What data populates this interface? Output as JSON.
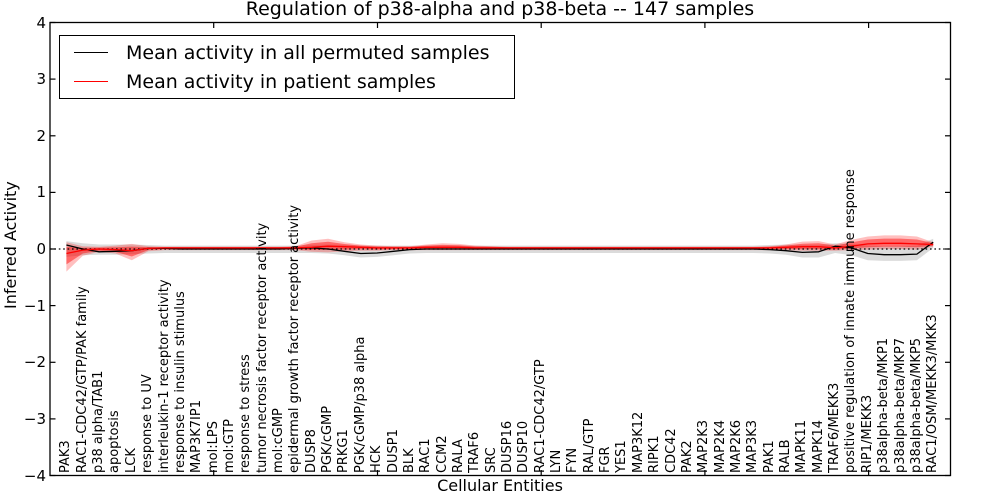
{
  "chart_data": {
    "type": "line",
    "title": "Regulation of p38-alpha and p38-beta -- 147 samples",
    "xlabel": "Cellular Entities",
    "ylabel": "Inferred Activity",
    "ylim": [
      -4,
      4
    ],
    "ytick_values": [
      4,
      3,
      2,
      1,
      0,
      -1,
      -2,
      -3,
      -4
    ],
    "ytick_labels": [
      "4",
      "3",
      "2",
      "1",
      "0",
      "−1",
      "−2",
      "−3",
      "−4"
    ],
    "grid": false,
    "legend_position": "upper left",
    "zero_line": {
      "y": 0,
      "style": "dotted",
      "color": "#000000"
    },
    "categories": [
      "PAK3",
      "RAC1-CDC42/GTP/PAK family",
      "p38 alpha/TAB1",
      "apoptosis",
      "LCK",
      "response to UV",
      "interleukin-1 receptor activity",
      "response to insulin stimulus",
      "MAP3K7IP1",
      "mol:LPS",
      "mol:GTP",
      "response to stress",
      "tumor necrosis factor receptor activity",
      "mol:cGMP",
      "epidermal growth factor receptor activity",
      "DUSP8",
      "PGK/cGMP",
      "PRKG1",
      "PGK/cGMP/p38 alpha",
      "HCK",
      "DUSP1",
      "BLK",
      "RAC1",
      "CCM2",
      "RALA",
      "TRAF6",
      "SRC",
      "DUSP16",
      "DUSP10",
      "RAC1-CDC42/GTP",
      "LYN",
      "FYN",
      "RAL/GTP",
      "FGR",
      "YES1",
      "MAP3K12",
      "RIPK1",
      "CDC42",
      "PAK2",
      "MAP2K3",
      "MAP2K4",
      "MAP2K6",
      "MAP3K3",
      "PAK1",
      "RALB",
      "MAPK11",
      "MAPK14",
      "TRAF6/MEKK3",
      "positive regulation of innate immune response",
      "RIP1/MEKK3",
      "p38alpha-beta/MKP1",
      "p38alpha-beta/MKP7",
      "p38alpha-beta/MKP5",
      "RAC1/OSM/MEKK3/MKK3"
    ],
    "series": [
      {
        "name": "Mean activity in all permuted samples",
        "color": "#000000",
        "values": [
          0.07,
          0.0,
          -0.05,
          -0.04,
          -0.03,
          0.01,
          0.01,
          0.0,
          0.0,
          0.0,
          0.0,
          0.0,
          0.0,
          0.0,
          0.01,
          0.02,
          0.0,
          -0.04,
          -0.08,
          -0.07,
          -0.04,
          -0.01,
          0.0,
          0.0,
          0.0,
          0.0,
          0.0,
          0.0,
          0.0,
          0.0,
          0.0,
          0.0,
          0.0,
          0.0,
          0.0,
          0.0,
          0.0,
          0.0,
          0.0,
          0.0,
          0.0,
          0.0,
          0.0,
          -0.01,
          -0.03,
          -0.06,
          -0.05,
          0.05,
          0.02,
          -0.08,
          -0.1,
          -0.1,
          -0.09,
          0.12
        ]
      },
      {
        "name": "Mean activity in patient samples",
        "color": "#ff0000",
        "values": [
          -0.08,
          -0.02,
          0.0,
          -0.01,
          -0.03,
          0.01,
          0.02,
          0.02,
          0.02,
          0.02,
          0.02,
          0.02,
          0.02,
          0.02,
          0.02,
          0.03,
          0.05,
          0.04,
          0.03,
          0.02,
          0.02,
          0.02,
          0.03,
          0.03,
          0.03,
          0.02,
          0.02,
          0.02,
          0.02,
          0.02,
          0.02,
          0.02,
          0.02,
          0.02,
          0.02,
          0.02,
          0.02,
          0.02,
          0.02,
          0.02,
          0.02,
          0.02,
          0.02,
          0.02,
          0.03,
          0.04,
          0.04,
          0.02,
          0.05,
          0.09,
          0.1,
          0.1,
          0.09,
          0.08
        ]
      }
    ],
    "bands": [
      {
        "name": "permuted-samples-range",
        "color": "rgba(0,0,0,0.14)",
        "upper": [
          0.14,
          0.1,
          0.08,
          0.08,
          0.08,
          0.07,
          0.06,
          0.06,
          0.06,
          0.06,
          0.06,
          0.06,
          0.06,
          0.06,
          0.06,
          0.07,
          0.08,
          0.07,
          0.06,
          0.06,
          0.06,
          0.06,
          0.06,
          0.06,
          0.06,
          0.06,
          0.06,
          0.06,
          0.06,
          0.06,
          0.06,
          0.06,
          0.06,
          0.06,
          0.06,
          0.06,
          0.06,
          0.06,
          0.06,
          0.06,
          0.06,
          0.06,
          0.06,
          0.07,
          0.08,
          0.07,
          0.07,
          0.1,
          0.09,
          0.06,
          0.05,
          0.05,
          0.06,
          0.18
        ],
        "lower": [
          -0.14,
          -0.11,
          -0.1,
          -0.1,
          -0.09,
          -0.08,
          -0.07,
          -0.07,
          -0.07,
          -0.07,
          -0.07,
          -0.07,
          -0.07,
          -0.07,
          -0.07,
          -0.07,
          -0.08,
          -0.11,
          -0.15,
          -0.14,
          -0.11,
          -0.08,
          -0.07,
          -0.07,
          -0.07,
          -0.07,
          -0.07,
          -0.07,
          -0.07,
          -0.07,
          -0.07,
          -0.07,
          -0.07,
          -0.07,
          -0.07,
          -0.07,
          -0.07,
          -0.07,
          -0.07,
          -0.07,
          -0.07,
          -0.07,
          -0.07,
          -0.08,
          -0.1,
          -0.15,
          -0.15,
          -0.07,
          -0.11,
          -0.2,
          -0.21,
          -0.21,
          -0.2,
          0.02
        ]
      },
      {
        "name": "patient-samples-range",
        "color": "rgba(255,0,0,0.25)",
        "inner_color": "rgba(255,0,0,0.45)",
        "upper": [
          0.12,
          0.05,
          0.04,
          0.06,
          0.09,
          0.05,
          0.04,
          0.04,
          0.04,
          0.04,
          0.04,
          0.04,
          0.04,
          0.04,
          0.05,
          0.15,
          0.18,
          0.12,
          0.08,
          0.06,
          0.05,
          0.05,
          0.08,
          0.1,
          0.09,
          0.06,
          0.05,
          0.04,
          0.04,
          0.04,
          0.04,
          0.04,
          0.04,
          0.04,
          0.04,
          0.04,
          0.04,
          0.04,
          0.04,
          0.04,
          0.04,
          0.04,
          0.04,
          0.05,
          0.08,
          0.13,
          0.14,
          0.08,
          0.16,
          0.22,
          0.24,
          0.24,
          0.22,
          0.12
        ],
        "lower": [
          -0.4,
          -0.12,
          -0.05,
          -0.08,
          -0.2,
          -0.04,
          -0.02,
          -0.02,
          -0.02,
          -0.02,
          -0.02,
          -0.02,
          -0.02,
          -0.02,
          -0.02,
          -0.05,
          -0.06,
          -0.04,
          -0.03,
          -0.03,
          -0.02,
          -0.02,
          -0.02,
          -0.02,
          -0.02,
          -0.02,
          -0.02,
          -0.02,
          -0.02,
          -0.02,
          -0.02,
          -0.02,
          -0.02,
          -0.02,
          -0.02,
          -0.02,
          -0.02,
          -0.02,
          -0.02,
          -0.02,
          -0.02,
          -0.02,
          -0.02,
          -0.02,
          -0.02,
          -0.03,
          -0.03,
          -0.03,
          -0.02,
          -0.01,
          0.0,
          0.0,
          -0.01,
          0.04
        ]
      }
    ]
  }
}
